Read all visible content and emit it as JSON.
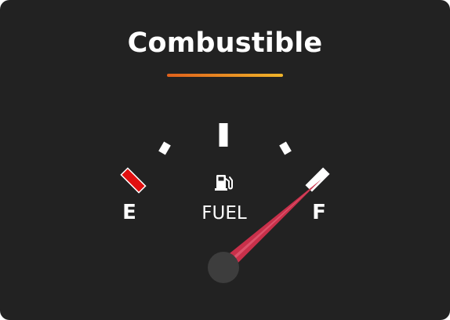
{
  "widget": {
    "title": "Combustible",
    "gauge": {
      "label": "FUEL",
      "empty_label": "E",
      "full_label": "F",
      "level": 1.0,
      "icon": "fuel-pump-icon"
    }
  },
  "colors": {
    "background": "#222222",
    "text": "#ffffff",
    "empty_tick": "#e01010",
    "needle": "#c8304a",
    "hub": "#3d3d3d",
    "accent_start": "#e0611b",
    "accent_end": "#f0b52a"
  }
}
